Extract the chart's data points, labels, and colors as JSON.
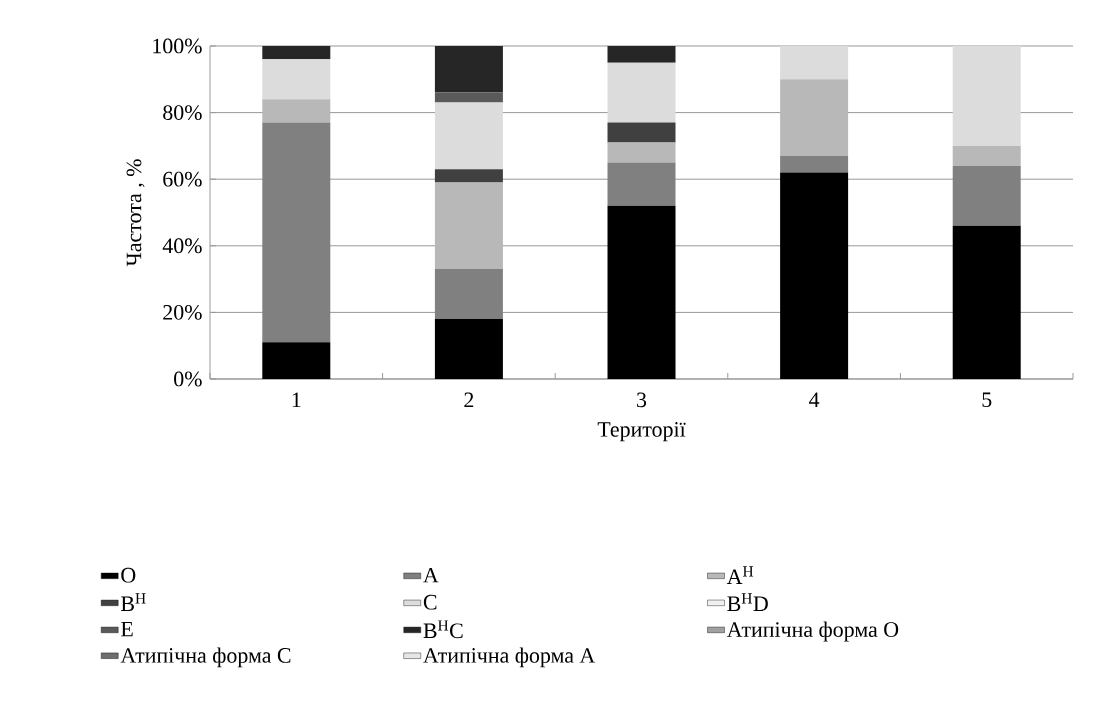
{
  "chart_data": {
    "type": "bar",
    "stacked": true,
    "xlabel": "Території",
    "ylabel": "Частота , %",
    "categories": [
      "1",
      "2",
      "3",
      "4",
      "5"
    ],
    "ylim": [
      0,
      100
    ],
    "yticks": [
      {
        "value": 0,
        "label": "0%"
      },
      {
        "value": 20,
        "label": "20%"
      },
      {
        "value": 40,
        "label": "40%"
      },
      {
        "value": 60,
        "label": "60%"
      },
      {
        "value": 80,
        "label": "80%"
      },
      {
        "value": 100,
        "label": "100%"
      }
    ],
    "grid": "y",
    "legend": "bottom",
    "series": [
      {
        "name": "O",
        "color": "#000000",
        "values": [
          11,
          18,
          52,
          62,
          46
        ]
      },
      {
        "name": "A",
        "color": "#808080",
        "values": [
          66,
          15,
          13,
          5,
          18
        ]
      },
      {
        "name": "A$^{H}$",
        "color": "#b8b8b8",
        "values": [
          7,
          26,
          6,
          23,
          6
        ]
      },
      {
        "name": "B$^{H}$",
        "color": "#404040",
        "values": [
          0,
          4,
          6,
          0,
          0
        ]
      },
      {
        "name": "C",
        "color": "#dcdcdc",
        "values": [
          12,
          20,
          18,
          10,
          30
        ]
      },
      {
        "name": "B$^{H}$D",
        "color": "#f0f0f0",
        "values": [
          0,
          0,
          0,
          0,
          0
        ]
      },
      {
        "name": "E",
        "color": "#5a5a5a",
        "values": [
          0,
          3,
          0,
          0,
          0
        ]
      },
      {
        "name": "B$^{H}$C",
        "color": "#262626",
        "values": [
          4,
          14,
          5,
          0,
          0
        ]
      },
      {
        "name": "Атипічна форма О",
        "color": "#a0a0a0",
        "values": [
          0,
          0,
          0,
          0,
          0
        ]
      },
      {
        "name": "Атипічна форма С",
        "color": "#6e6e6e",
        "values": [
          0,
          0,
          0,
          0,
          0
        ]
      },
      {
        "name": "Атипічна форма А",
        "color": "#e6e6e6",
        "values": [
          0,
          0,
          0,
          0,
          0
        ]
      }
    ]
  }
}
